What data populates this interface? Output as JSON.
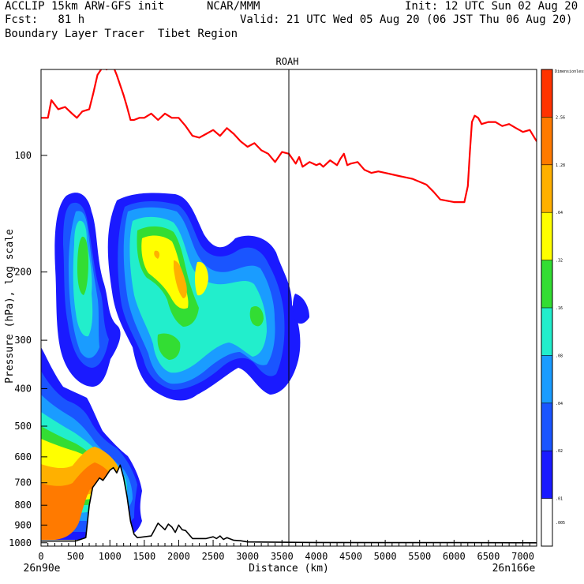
{
  "header": {
    "line1_left": "ACCLIP 15km ARW-GFS init",
    "line1_mid": "NCAR/MMM",
    "line1_right": "Init: 12 UTC Sun 02 Aug 20",
    "line2_left": "Fcst:   81 h",
    "line2_right": "Valid: 21 UTC Wed 05 Aug 20 (06 JST Thu 06 Aug 20)",
    "line3_left": "Boundary Layer Tracer  Tibet Region"
  },
  "chart_data": {
    "type": "cross-section",
    "title": "ROAH",
    "xlabel": "Distance (km)",
    "ylabel": "Pressure (hPa), log scale",
    "xlim": [
      0,
      7200
    ],
    "ylim": [
      1000,
      60
    ],
    "x_ticks": [
      0,
      500,
      1000,
      1500,
      2000,
      2500,
      3000,
      3500,
      4000,
      4500,
      5000,
      5500,
      6000,
      6500,
      7000
    ],
    "y_ticks": [
      100,
      200,
      300,
      400,
      500,
      600,
      700,
      800,
      900,
      1000
    ],
    "x_start_label": "26n90e",
    "x_end_label": "26n166e",
    "marker_line_km": 3600,
    "colorbar": {
      "unit_label": "Dimensionless",
      "levels": [
        "2.56",
        "1.28",
        ".64",
        ".32",
        ".16",
        ".08",
        ".04",
        ".02",
        ".01",
        ".005"
      ],
      "colors": [
        "#ff3300",
        "#ff7a00",
        "#ffb000",
        "#ffff00",
        "#33dd33",
        "#22eecc",
        "#1a9cff",
        "#1a55ff",
        "#1a1aff",
        "#ffffff"
      ]
    },
    "series": [
      {
        "name": "tropopause (red line)",
        "color": "#ff0000",
        "x": [
          0,
          100,
          150,
          250,
          350,
          450,
          520,
          600,
          700,
          760,
          820,
          900,
          950,
          1050,
          1100,
          1200,
          1250,
          1300,
          1350,
          1430,
          1500,
          1600,
          1700,
          1800,
          1900,
          2000,
          2100,
          2200,
          2300,
          2400,
          2500,
          2600,
          2700,
          2800,
          2900,
          3000,
          3100,
          3200,
          3300,
          3400,
          3500,
          3600,
          3700,
          3750,
          3800,
          3900,
          4000,
          4050,
          4100,
          4200,
          4300,
          4350,
          4400,
          4450,
          4500,
          4600,
          4700,
          4800,
          4900,
          5000,
          5200,
          5400,
          5500,
          5600,
          5700,
          5800,
          6000,
          6100,
          6150,
          6200,
          6230,
          6260,
          6300,
          6350,
          6400,
          6500,
          6600,
          6700,
          6800,
          6900,
          7000,
          7100,
          7200
        ],
        "y": [
          80,
          80,
          72,
          76,
          75,
          78,
          80,
          77,
          76,
          69,
          62,
          59,
          60,
          59,
          62,
          70,
          75,
          81,
          81,
          80,
          80,
          78,
          81,
          78,
          80,
          80,
          84,
          89,
          90,
          88,
          86,
          89,
          85,
          88,
          92,
          95,
          93,
          97,
          99,
          104,
          98,
          99,
          105,
          101,
          107,
          104,
          106,
          105,
          107,
          103,
          106,
          102,
          99,
          106,
          105,
          104,
          109,
          111,
          110,
          111,
          113,
          115,
          117,
          119,
          124,
          130,
          132,
          132,
          132,
          120,
          98,
          82,
          79,
          80,
          83,
          82,
          82,
          84,
          83,
          85,
          87,
          86,
          92
        ]
      },
      {
        "name": "terrain (black line)",
        "color": "#000000",
        "x": [
          0,
          500,
          650,
          700,
          750,
          800,
          850,
          900,
          950,
          1000,
          1050,
          1100,
          1150,
          1200,
          1250,
          1300,
          1350,
          1400,
          1600,
          1700,
          1800,
          1850,
          1900,
          1950,
          2000,
          2050,
          2100,
          2200,
          2400,
          2500,
          2550,
          2600,
          2650,
          2700,
          2800,
          2900,
          3000,
          3500,
          4000,
          5000,
          6000,
          7200
        ],
        "y": [
          990,
          990,
          970,
          800,
          720,
          700,
          680,
          690,
          670,
          650,
          640,
          660,
          630,
          680,
          760,
          880,
          950,
          970,
          960,
          890,
          925,
          895,
          910,
          940,
          900,
          925,
          930,
          975,
          975,
          965,
          975,
          960,
          980,
          970,
          985,
          988,
          995,
          997,
          998,
          999,
          999,
          1000
        ]
      }
    ],
    "contour_fields": [
      {
        "name": "upper anticyclone plume",
        "value_range": [
          0.01,
          1.28
        ]
      },
      {
        "name": "near-surface boundary layer",
        "value_range": [
          0.01,
          2.56
        ]
      }
    ]
  }
}
